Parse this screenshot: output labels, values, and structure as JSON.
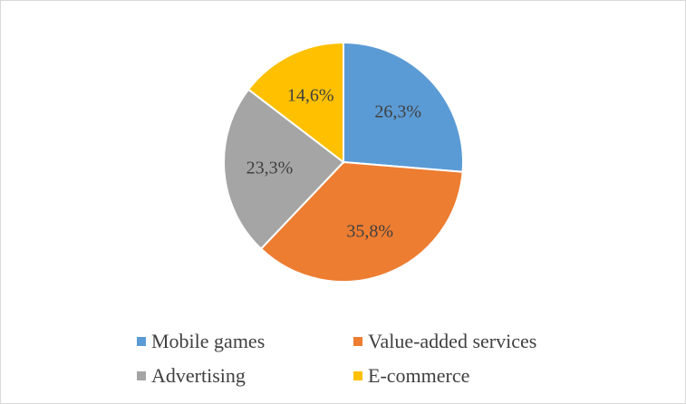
{
  "chart_data": {
    "type": "pie",
    "categories": [
      "Mobile games",
      "Value-added services",
      "Advertising",
      "E-commerce"
    ],
    "values": [
      26.3,
      35.8,
      23.3,
      14.6
    ],
    "labels": [
      "26,3%",
      "35,8%",
      "23,3%",
      "14,6%"
    ],
    "colors": [
      "#5b9bd5",
      "#ed7d31",
      "#a5a5a5",
      "#ffc000"
    ],
    "start_angle_deg": 0,
    "direction": "clockwise",
    "legend_placement": "bottom",
    "title": ""
  },
  "legend": {
    "items": [
      {
        "label": "Mobile games",
        "color": "#5b9bd5"
      },
      {
        "label": "Value-added services",
        "color": "#ed7d31"
      },
      {
        "label": "Advertising",
        "color": "#a5a5a5"
      },
      {
        "label": "E-commerce",
        "color": "#ffc000"
      }
    ]
  }
}
